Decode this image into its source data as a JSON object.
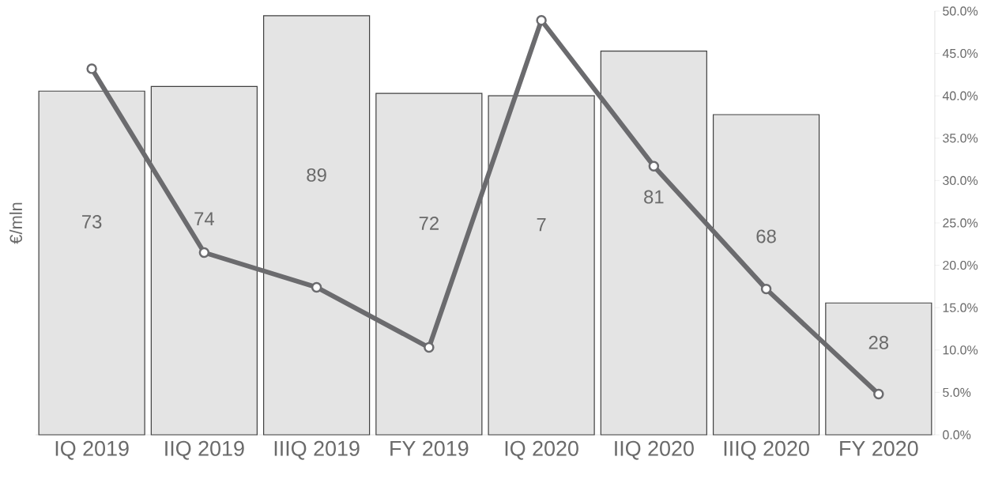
{
  "chart_data": {
    "type": "bar",
    "ylabel": "€/mln",
    "categories": [
      "IQ 2019",
      "IIQ 2019",
      "IIIQ 2019",
      "FY 2019",
      "IQ 2020",
      "IIQ 2020",
      "IIIQ 2020",
      "FY 2020"
    ],
    "series": [
      {
        "type": "bar",
        "color": "#e4e4e4",
        "values": [
          73,
          74,
          89,
          72.5,
          72,
          81.5,
          68,
          28
        ],
        "value_labels": [
          "73",
          "74",
          "89",
          "72",
          null,
          "81",
          "68",
          "28"
        ]
      },
      {
        "type": "line",
        "axis": "y2",
        "color": "#6b6b6e",
        "marker": "circle",
        "values": [
          43.2,
          21.5,
          17.4,
          10.3,
          48.9,
          31.7,
          17.2,
          4.8
        ]
      }
    ],
    "annotations": [
      "7"
    ],
    "ylim": [
      0,
      90
    ],
    "y2lim": [
      0,
      50
    ],
    "y2ticks": [
      {
        "value": 0,
        "label": "0.0%"
      },
      {
        "value": 5,
        "label": "5.0%"
      },
      {
        "value": 10,
        "label": "10.0%"
      },
      {
        "value": 15,
        "label": "15.0%"
      },
      {
        "value": 20,
        "label": "20.0%"
      },
      {
        "value": 25,
        "label": "25.0%"
      },
      {
        "value": 30,
        "label": "30.0%"
      },
      {
        "value": 35,
        "label": "35.0%"
      },
      {
        "value": 40,
        "label": "40.0%"
      },
      {
        "value": 45,
        "label": "45.0%"
      },
      {
        "value": 50,
        "label": "50.0%"
      }
    ]
  }
}
